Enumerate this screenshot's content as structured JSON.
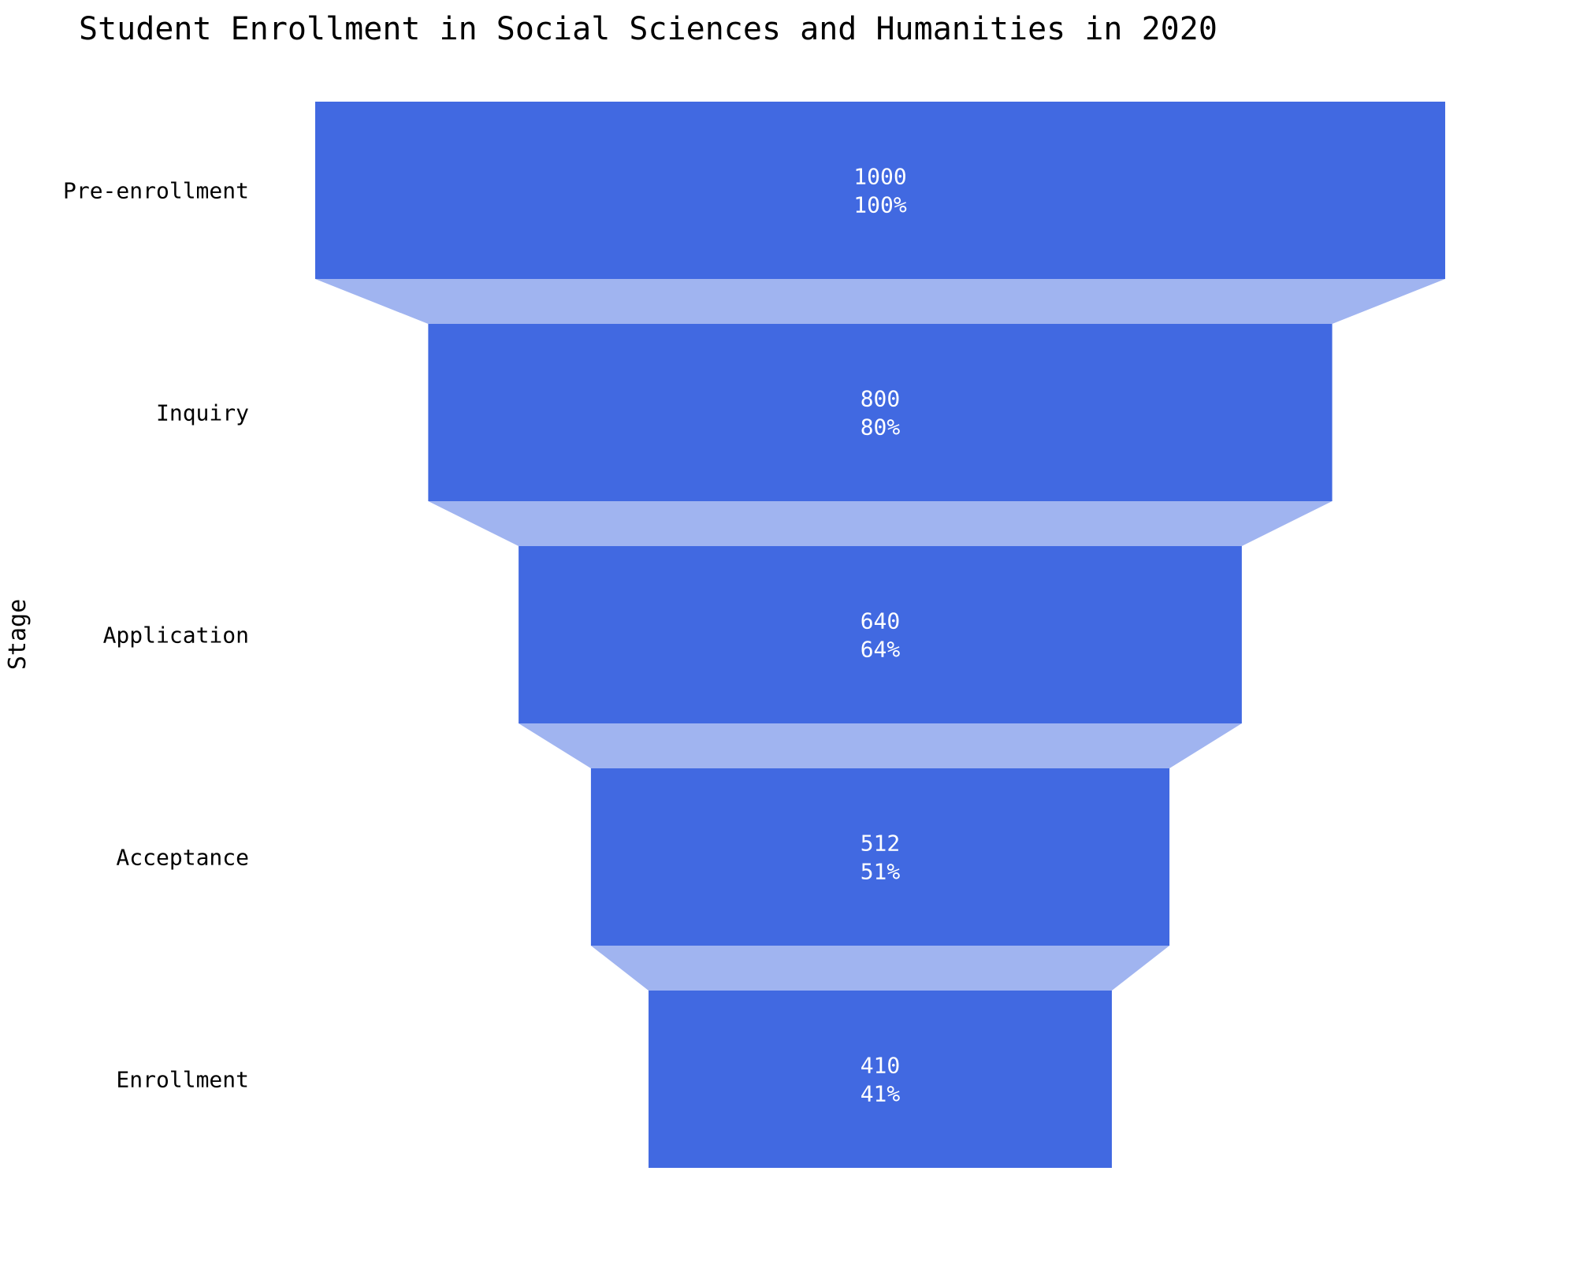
{
  "chart_data": {
    "type": "funnel",
    "title": "Student Enrollment in Social Sciences and Humanities in 2020",
    "ylabel": "Stage",
    "xlabel": "",
    "categories": [
      "Pre-enrollment",
      "Inquiry",
      "Application",
      "Acceptance",
      "Enrollment"
    ],
    "values": [
      1000,
      800,
      640,
      512,
      410
    ],
    "percent_of_initial": [
      "100%",
      "80%",
      "64%",
      "51%",
      "41%"
    ],
    "bar_color": "#4169e1",
    "connector_color": "#a0b4f0",
    "label_color": "#ffffff",
    "grid": false,
    "legend": "none"
  }
}
